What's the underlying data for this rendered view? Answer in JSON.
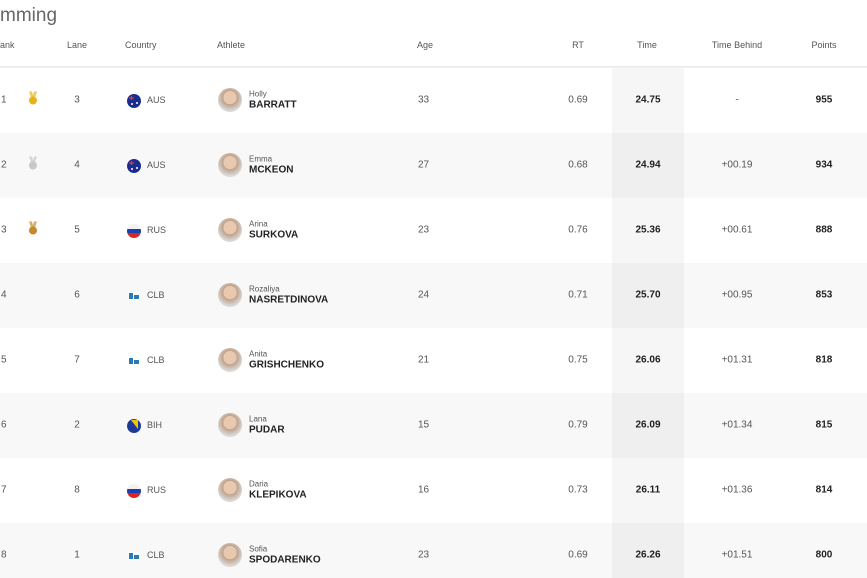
{
  "header": {
    "title": "mming"
  },
  "table": {
    "columns": [
      "ank",
      "Lane",
      "Country",
      "Athlete",
      "Age",
      "RT",
      "Time",
      "Time Behind",
      "Points"
    ],
    "rows": [
      {
        "rank": "1",
        "lane": "3",
        "country": "AUS",
        "first": "Holly",
        "last": "BARRATT",
        "age": "33",
        "rt": "0.69",
        "time": "24.75",
        "behind": "-",
        "points": "955"
      },
      {
        "rank": "2",
        "lane": "4",
        "country": "AUS",
        "first": "Emma",
        "last": "MCKEON",
        "age": "27",
        "rt": "0.68",
        "time": "24.94",
        "behind": "+00.19",
        "points": "934"
      },
      {
        "rank": "3",
        "lane": "5",
        "country": "RUS",
        "first": "Arina",
        "last": "SURKOVA",
        "age": "23",
        "rt": "0.76",
        "time": "25.36",
        "behind": "+00.61",
        "points": "888"
      },
      {
        "rank": "4",
        "lane": "6",
        "country": "CLB",
        "first": "Rozaliya",
        "last": "NASRETDINOVA",
        "age": "24",
        "rt": "0.71",
        "time": "25.70",
        "behind": "+00.95",
        "points": "853"
      },
      {
        "rank": "5",
        "lane": "7",
        "country": "CLB",
        "first": "Anita",
        "last": "GRISHCHENKO",
        "age": "21",
        "rt": "0.75",
        "time": "26.06",
        "behind": "+01.31",
        "points": "818"
      },
      {
        "rank": "6",
        "lane": "2",
        "country": "BIH",
        "first": "Lana",
        "last": "PUDAR",
        "age": "15",
        "rt": "0.79",
        "time": "26.09",
        "behind": "+01.34",
        "points": "815"
      },
      {
        "rank": "7",
        "lane": "8",
        "country": "RUS",
        "first": "Daria",
        "last": "KLEPIKOVA",
        "age": "16",
        "rt": "0.73",
        "time": "26.11",
        "behind": "+01.36",
        "points": "814"
      },
      {
        "rank": "8",
        "lane": "1",
        "country": "CLB",
        "first": "Sofia",
        "last": "SPODARENKO",
        "age": "23",
        "rt": "0.69",
        "time": "26.26",
        "behind": "+01.51",
        "points": "800"
      }
    ]
  }
}
